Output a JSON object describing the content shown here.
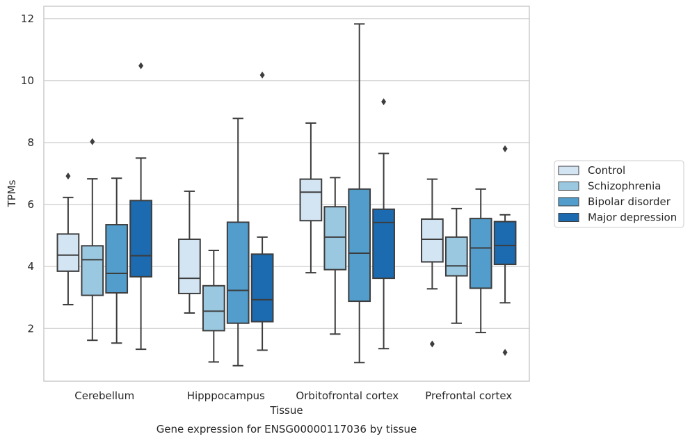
{
  "chart_data": {
    "type": "box",
    "title": "Gene expression for ENSG00000117036 by tissue",
    "xlabel": "Tissue",
    "ylabel": "TPMs",
    "ylim": [
      0.3,
      12.4
    ],
    "yticks": [
      2,
      4,
      6,
      8,
      10,
      12
    ],
    "grid": true,
    "legend_position": "right",
    "categories": [
      "Cerebellum",
      "Hipppocampus",
      "Orbitofrontal cortex",
      "Prefrontal cortex"
    ],
    "series": [
      {
        "name": "Control",
        "color": "#d3e4f3",
        "boxes": [
          {
            "whislo": 2.77,
            "q1": 3.85,
            "med": 4.37,
            "q3": 5.05,
            "whishi": 6.23,
            "fliers": [
              6.92
            ]
          },
          {
            "whislo": 2.5,
            "q1": 3.13,
            "med": 3.62,
            "q3": 4.88,
            "whishi": 6.43,
            "fliers": []
          },
          {
            "whislo": 3.8,
            "q1": 5.48,
            "med": 6.4,
            "q3": 6.82,
            "whishi": 8.63,
            "fliers": []
          },
          {
            "whislo": 3.28,
            "q1": 4.15,
            "med": 4.88,
            "q3": 5.53,
            "whishi": 6.82,
            "fliers": [
              1.5
            ]
          }
        ]
      },
      {
        "name": "Schizophrenia",
        "color": "#9ac8e0",
        "boxes": [
          {
            "whislo": 1.62,
            "q1": 3.07,
            "med": 4.22,
            "q3": 4.67,
            "whishi": 6.83,
            "fliers": [
              8.03
            ]
          },
          {
            "whislo": 0.92,
            "q1": 1.93,
            "med": 2.56,
            "q3": 3.38,
            "whishi": 4.52,
            "fliers": []
          },
          {
            "whislo": 1.82,
            "q1": 3.9,
            "med": 4.95,
            "q3": 5.93,
            "whishi": 6.87,
            "fliers": []
          },
          {
            "whislo": 2.17,
            "q1": 3.7,
            "med": 4.02,
            "q3": 4.95,
            "whishi": 5.87,
            "fliers": []
          }
        ]
      },
      {
        "name": "Bipolar disorder",
        "color": "#529dcc",
        "boxes": [
          {
            "whislo": 1.53,
            "q1": 3.15,
            "med": 3.78,
            "q3": 5.35,
            "whishi": 6.85,
            "fliers": []
          },
          {
            "whislo": 0.8,
            "q1": 2.17,
            "med": 3.23,
            "q3": 5.43,
            "whishi": 8.78,
            "fliers": []
          },
          {
            "whislo": 0.9,
            "q1": 2.88,
            "med": 4.43,
            "q3": 6.5,
            "whishi": 11.83,
            "fliers": []
          },
          {
            "whislo": 1.87,
            "q1": 3.3,
            "med": 4.6,
            "q3": 5.55,
            "whishi": 6.5,
            "fliers": []
          }
        ]
      },
      {
        "name": "Major depression",
        "color": "#1c6aaf",
        "boxes": [
          {
            "whislo": 1.33,
            "q1": 3.67,
            "med": 4.35,
            "q3": 6.13,
            "whishi": 7.5,
            "fliers": [
              10.48
            ]
          },
          {
            "whislo": 1.3,
            "q1": 2.22,
            "med": 2.93,
            "q3": 4.4,
            "whishi": 4.95,
            "fliers": [
              10.18
            ]
          },
          {
            "whislo": 1.35,
            "q1": 3.62,
            "med": 5.42,
            "q3": 5.85,
            "whishi": 7.65,
            "fliers": [
              9.32
            ]
          },
          {
            "whislo": 2.83,
            "q1": 4.07,
            "med": 4.68,
            "q3": 5.45,
            "whishi": 5.67,
            "fliers": [
              7.8,
              1.23
            ]
          }
        ]
      }
    ]
  }
}
